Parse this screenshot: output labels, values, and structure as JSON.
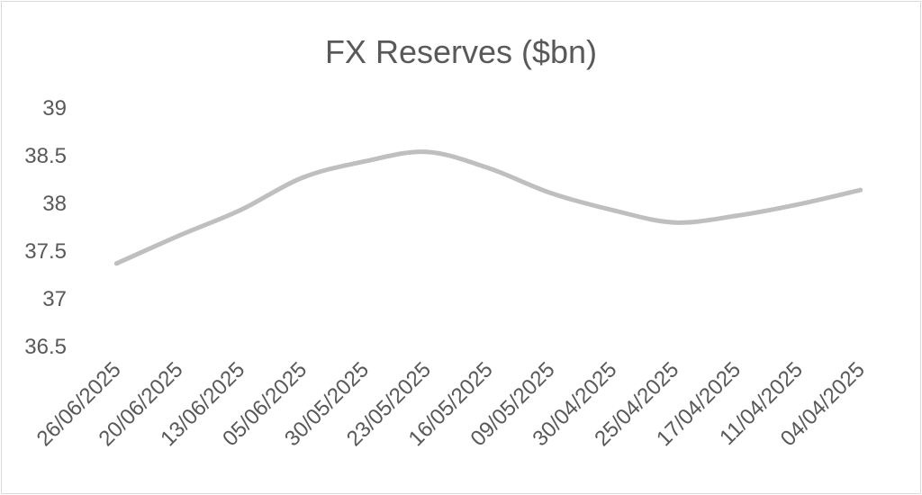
{
  "chart_data": {
    "type": "line",
    "title": "FX Reserves ($bn)",
    "xlabel": "",
    "ylabel": "",
    "categories": [
      "26/06/2025",
      "20/06/2025",
      "13/06/2025",
      "05/06/2025",
      "30/05/2025",
      "23/05/2025",
      "16/05/2025",
      "09/05/2025",
      "30/04/2025",
      "25/04/2025",
      "17/04/2025",
      "11/04/2025",
      "04/04/2025"
    ],
    "series": [
      {
        "values": [
          37.37,
          37.66,
          37.93,
          38.27,
          38.44,
          38.54,
          38.37,
          38.11,
          37.93,
          37.8,
          37.87,
          37.99,
          38.14
        ]
      }
    ],
    "ylim": [
      36.5,
      39
    ],
    "yticks": [
      "36.5",
      "37",
      "37.5",
      "38",
      "38.5",
      "39"
    ],
    "grid": false,
    "legend": "none",
    "line_color": "#bfbfbf"
  }
}
